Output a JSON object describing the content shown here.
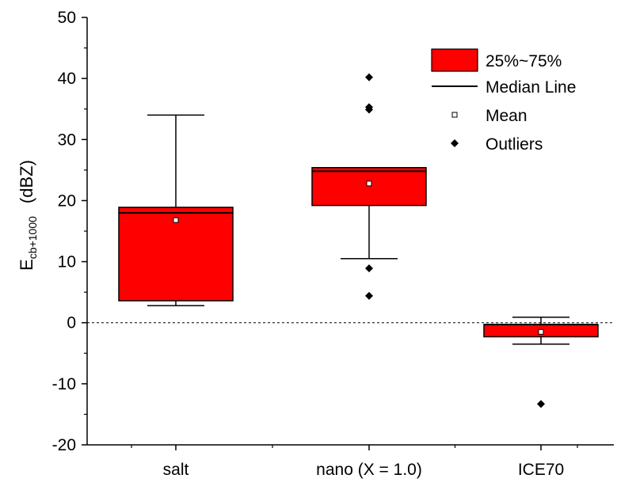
{
  "chart_data": {
    "type": "box",
    "title": "",
    "ylabel": {
      "main": "E",
      "subscript": "cb+1000",
      "unit": "(dBZ)"
    },
    "xlabel": "",
    "ylim": [
      -20,
      50
    ],
    "yticks": [
      -20,
      -10,
      0,
      10,
      20,
      30,
      40,
      50
    ],
    "zero_reference_line": true,
    "categories": [
      "salt",
      "nano (X = 1.0)",
      "ICE70"
    ],
    "boxes": [
      {
        "category": "salt",
        "whisker_low": 2.8,
        "q1": 3.6,
        "median": 18.0,
        "q3": 18.9,
        "whisker_high": 34.0,
        "mean": 16.8,
        "outliers": []
      },
      {
        "category": "nano (X = 1.0)",
        "whisker_low": 10.5,
        "q1": 19.2,
        "median": 24.8,
        "q3": 25.4,
        "whisker_high": 25.4,
        "mean": 22.8,
        "outliers": [
          40.2,
          35.3,
          34.9,
          8.9,
          4.4
        ]
      },
      {
        "category": "ICE70",
        "whisker_low": -3.5,
        "q1": -2.3,
        "median": -0.3,
        "q3": -0.3,
        "whisker_high": 0.9,
        "mean": -1.5,
        "outliers": [
          -13.3
        ]
      }
    ],
    "legend": {
      "position": "top-right",
      "entries": [
        "25%~75%",
        "Median Line",
        "Mean",
        "Outliers"
      ]
    },
    "colors": {
      "box_fill": "#ff0000",
      "box_stroke": "#000000",
      "axis": "#000000"
    }
  }
}
